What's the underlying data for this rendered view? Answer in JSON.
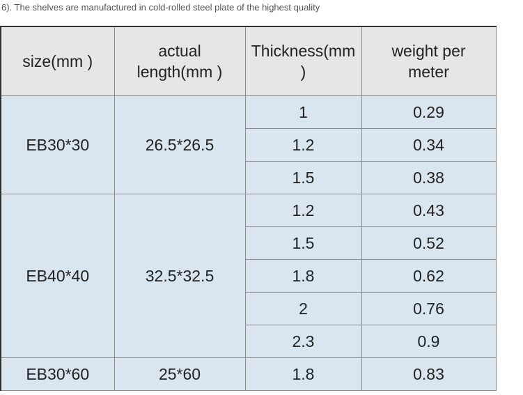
{
  "caption": "6). The shelves are manufactured in cold-rolled steel plate of the highest quality",
  "table": {
    "header": [
      "size(mm )",
      "actual length(mm )",
      "Thickness(mm )",
      "weight per meter"
    ],
    "groups": [
      {
        "size": "EB30*30",
        "actual": "26.5*26.5",
        "rows": [
          [
            "1",
            "0.29"
          ],
          [
            "1.2",
            "0.34"
          ],
          [
            "1.5",
            "0.38"
          ]
        ]
      },
      {
        "size": "EB40*40",
        "actual": "32.5*32.5",
        "rows": [
          [
            "1.2",
            "0.43"
          ],
          [
            "1.5",
            "0.52"
          ],
          [
            "1.8",
            "0.62"
          ],
          [
            "2",
            "0.76"
          ],
          [
            "2.3",
            "0.9"
          ]
        ]
      },
      {
        "size": "EB30*60",
        "actual": "25*60",
        "rows": [
          [
            "1.8",
            "0.83"
          ]
        ]
      }
    ]
  }
}
